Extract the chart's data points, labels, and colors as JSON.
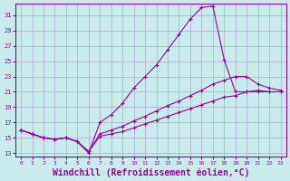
{
  "background_color": "#c8ecec",
  "grid_color": "#aaaacc",
  "line_color": "#990099",
  "xlabel": "Windchill (Refroidissement éolien,°C)",
  "xlabel_fontsize": 7.0,
  "ylabel_ticks": [
    13,
    15,
    17,
    19,
    21,
    23,
    25,
    27,
    29,
    31
  ],
  "xlabel_ticks": [
    0,
    1,
    2,
    3,
    4,
    5,
    6,
    7,
    8,
    9,
    10,
    11,
    12,
    13,
    14,
    15,
    16,
    17,
    18,
    19,
    20,
    21,
    22,
    23
  ],
  "xlim": [
    -0.5,
    23.5
  ],
  "ylim": [
    12.5,
    32.5
  ],
  "curves": [
    {
      "x": [
        0,
        1,
        2,
        3,
        4,
        5,
        6,
        7,
        8,
        9,
        10,
        11,
        12,
        13,
        14,
        15,
        16,
        17,
        18,
        19,
        20,
        21,
        22,
        23
      ],
      "y": [
        16.0,
        15.5,
        15.0,
        14.8,
        15.0,
        14.5,
        13.0,
        17.0,
        18.0,
        19.5,
        21.5,
        23.0,
        24.5,
        26.5,
        28.5,
        30.5,
        32.0,
        32.2,
        25.2,
        21.0,
        21.0,
        21.0,
        21.0,
        21.0
      ]
    },
    {
      "x": [
        0,
        1,
        2,
        3,
        4,
        5,
        6,
        7,
        8,
        9,
        10,
        11,
        12,
        13,
        14,
        15,
        16,
        17,
        18,
        19,
        20,
        21,
        22,
        23
      ],
      "y": [
        16.0,
        15.5,
        15.0,
        14.8,
        15.0,
        14.5,
        13.2,
        15.5,
        16.0,
        16.5,
        17.2,
        17.8,
        18.5,
        19.2,
        19.8,
        20.5,
        21.2,
        22.0,
        22.5,
        23.0,
        23.0,
        22.0,
        21.5,
        21.2
      ]
    },
    {
      "x": [
        0,
        1,
        2,
        3,
        4,
        5,
        6,
        7,
        8,
        9,
        10,
        11,
        12,
        13,
        14,
        15,
        16,
        17,
        18,
        19,
        20,
        21,
        22,
        23
      ],
      "y": [
        16.0,
        15.5,
        15.0,
        14.8,
        15.0,
        14.5,
        13.2,
        15.2,
        15.5,
        15.8,
        16.3,
        16.8,
        17.3,
        17.8,
        18.3,
        18.8,
        19.3,
        19.8,
        20.3,
        20.5,
        21.0,
        21.2,
        21.0,
        21.0
      ]
    }
  ]
}
